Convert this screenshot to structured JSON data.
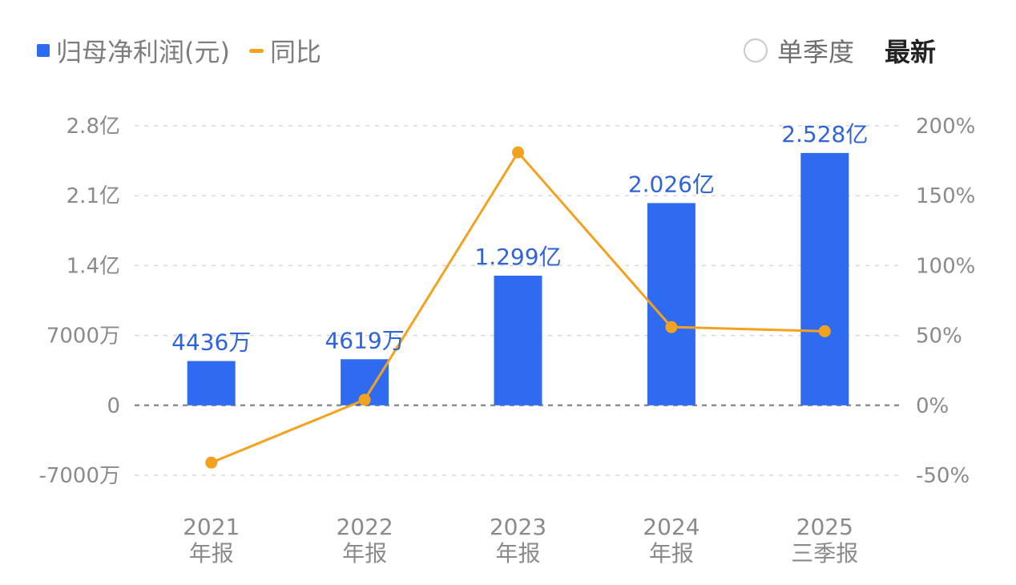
{
  "legend": {
    "bar_label": "归母净利润(元)",
    "line_label": "同比"
  },
  "controls": {
    "single_quarter_label": "单季度",
    "latest_label": "最新"
  },
  "colors": {
    "bar": "#2f6bf0",
    "line": "#f3a21f",
    "grid": "#d9d9d9",
    "axis_text": "#8a8a8a",
    "value_label": "#2f63d8"
  },
  "chart_data": {
    "type": "bar",
    "categories": [
      {
        "line1": "2021",
        "line2": "年报"
      },
      {
        "line1": "2022",
        "line2": "年报"
      },
      {
        "line1": "2023",
        "line2": "年报"
      },
      {
        "line1": "2024",
        "line2": "年报"
      },
      {
        "line1": "2025",
        "line2": "三季报"
      }
    ],
    "series": [
      {
        "name": "归母净利润(元)",
        "type": "bar",
        "axis": "left",
        "values": [
          44360000,
          46190000,
          129900000,
          202600000,
          252800000
        ],
        "labels": [
          "4436万",
          "4619万",
          "1.299亿",
          "2.026亿",
          "2.528亿"
        ]
      },
      {
        "name": "同比",
        "type": "line",
        "axis": "right",
        "values": [
          -41,
          4,
          181,
          56,
          53
        ]
      }
    ],
    "left_axis": {
      "ylim": [
        -70000000,
        280000000
      ],
      "ticks": [
        {
          "value": 280000000,
          "label": "2.8亿"
        },
        {
          "value": 210000000,
          "label": "2.1亿"
        },
        {
          "value": 140000000,
          "label": "1.4亿"
        },
        {
          "value": 70000000,
          "label": "7000万"
        },
        {
          "value": 0,
          "label": "0"
        },
        {
          "value": -70000000,
          "label": "-7000万"
        }
      ]
    },
    "right_axis": {
      "ylim": [
        -50,
        200
      ],
      "ticks": [
        {
          "value": 200,
          "label": "200%"
        },
        {
          "value": 150,
          "label": "150%"
        },
        {
          "value": 100,
          "label": "100%"
        },
        {
          "value": 50,
          "label": "50%"
        },
        {
          "value": 0,
          "label": "0%"
        },
        {
          "value": -50,
          "label": "-50%"
        }
      ]
    },
    "grid": true,
    "legend_position": "top-left"
  }
}
